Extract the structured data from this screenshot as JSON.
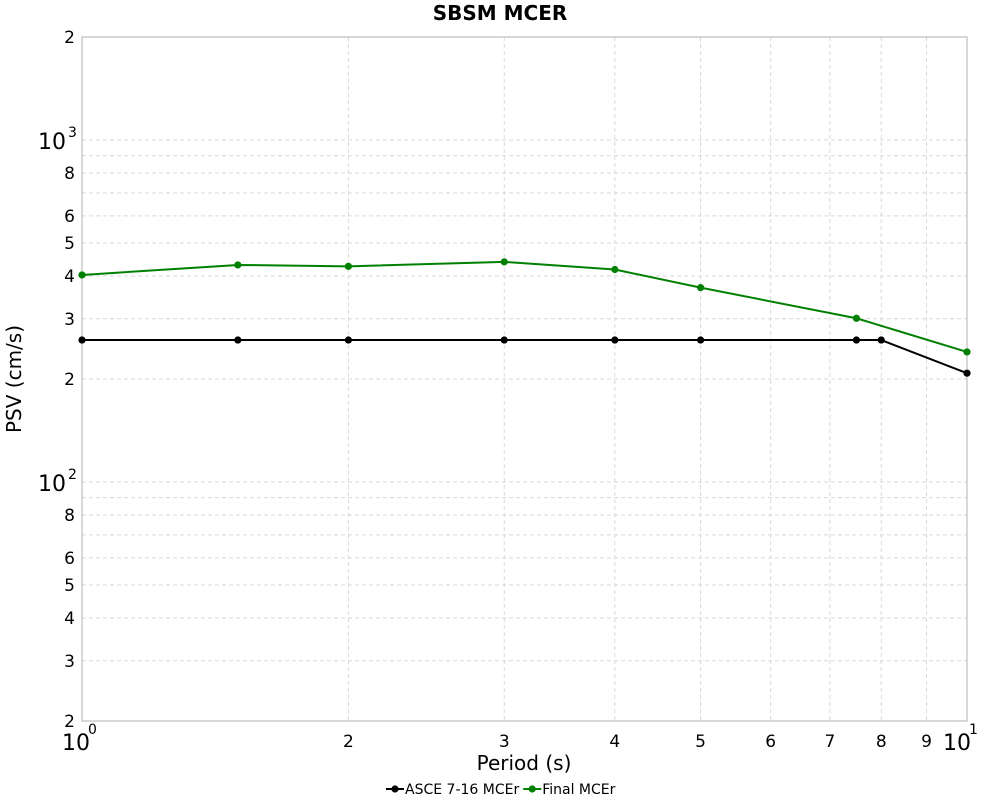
{
  "chart_data": {
    "type": "line",
    "title": "SBSM MCER",
    "xlabel": "Period (s)",
    "ylabel": "PSV (cm/s)",
    "x_scale": "log",
    "y_scale": "log",
    "xlim": [
      1,
      10
    ],
    "ylim": [
      20,
      2000
    ],
    "grid": true,
    "legend_position": "bottom-center",
    "x_major_ticks": [
      {
        "value": 1,
        "base": "10",
        "exp": "0"
      },
      {
        "value": 10,
        "base": "10",
        "exp": "1"
      }
    ],
    "x_minor_ticks": [
      {
        "value": 2,
        "label": "2"
      },
      {
        "value": 3,
        "label": "3"
      },
      {
        "value": 4,
        "label": "4"
      },
      {
        "value": 5,
        "label": "5"
      },
      {
        "value": 6,
        "label": "6"
      },
      {
        "value": 7,
        "label": "7"
      },
      {
        "value": 8,
        "label": "8"
      },
      {
        "value": 9,
        "label": "9"
      }
    ],
    "y_major_ticks": [
      {
        "value": 100,
        "base": "10",
        "exp": "2"
      },
      {
        "value": 1000,
        "base": "10",
        "exp": "3"
      }
    ],
    "y_minor_ticks": [
      {
        "value": 20,
        "label": "2"
      },
      {
        "value": 30,
        "label": "3"
      },
      {
        "value": 40,
        "label": "4"
      },
      {
        "value": 50,
        "label": "5"
      },
      {
        "value": 60,
        "label": "6"
      },
      {
        "value": 80,
        "label": "8"
      },
      {
        "value": 200,
        "label": "2"
      },
      {
        "value": 300,
        "label": "3"
      },
      {
        "value": 400,
        "label": "4"
      },
      {
        "value": 500,
        "label": "5"
      },
      {
        "value": 600,
        "label": "6"
      },
      {
        "value": 800,
        "label": "8"
      },
      {
        "value": 2000,
        "label": "2"
      }
    ],
    "x_grid": [
      2,
      3,
      4,
      5,
      6,
      7,
      8,
      9
    ],
    "y_grid": [
      30,
      40,
      50,
      60,
      70,
      80,
      90,
      100,
      200,
      300,
      400,
      500,
      600,
      700,
      800,
      900,
      1000
    ],
    "series": [
      {
        "name": "ASCE 7-16 MCEr",
        "color": "#000000",
        "x": [
          1,
          1.5,
          2,
          3,
          4,
          5,
          7.5,
          8,
          10
        ],
        "y": [
          260,
          260,
          260,
          260,
          260,
          260,
          260,
          260,
          208
        ]
      },
      {
        "name": "Final MCEr",
        "color": "#008000",
        "x": [
          1,
          1.5,
          2,
          3,
          4,
          5,
          7.5,
          10
        ],
        "y": [
          403,
          431,
          427,
          440,
          418,
          370,
          301,
          240
        ]
      }
    ]
  }
}
